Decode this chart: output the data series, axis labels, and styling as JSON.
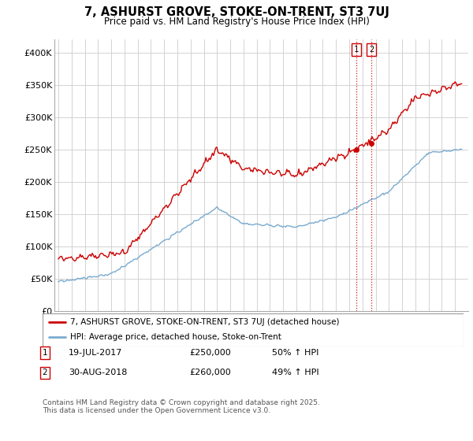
{
  "title": "7, ASHURST GROVE, STOKE-ON-TRENT, ST3 7UJ",
  "subtitle": "Price paid vs. HM Land Registry's House Price Index (HPI)",
  "ylim": [
    0,
    420000
  ],
  "yticks": [
    0,
    50000,
    100000,
    150000,
    200000,
    250000,
    300000,
    350000,
    400000
  ],
  "ytick_labels": [
    "£0",
    "£50K",
    "£100K",
    "£150K",
    "£200K",
    "£250K",
    "£300K",
    "£350K",
    "£400K"
  ],
  "red_color": "#cc0000",
  "blue_color": "#7aabcf",
  "vline_color": "#cc0000",
  "annotation1_date": "19-JUL-2017",
  "annotation1_price": "£250,000",
  "annotation1_hpi": "50% ↑ HPI",
  "annotation2_date": "30-AUG-2018",
  "annotation2_price": "£260,000",
  "annotation2_hpi": "49% ↑ HPI",
  "legend1": "7, ASHURST GROVE, STOKE-ON-TRENT, ST3 7UJ (detached house)",
  "legend2": "HPI: Average price, detached house, Stoke-on-Trent",
  "footnote": "Contains HM Land Registry data © Crown copyright and database right 2025.\nThis data is licensed under the Open Government Licence v3.0.",
  "bg_color": "#ffffff",
  "grid_color": "#cccccc",
  "marker1_x": 2017.54,
  "marker1_y": 250000,
  "marker2_x": 2018.66,
  "marker2_y": 260000,
  "xmin": 1994.7,
  "xmax": 2026.0
}
